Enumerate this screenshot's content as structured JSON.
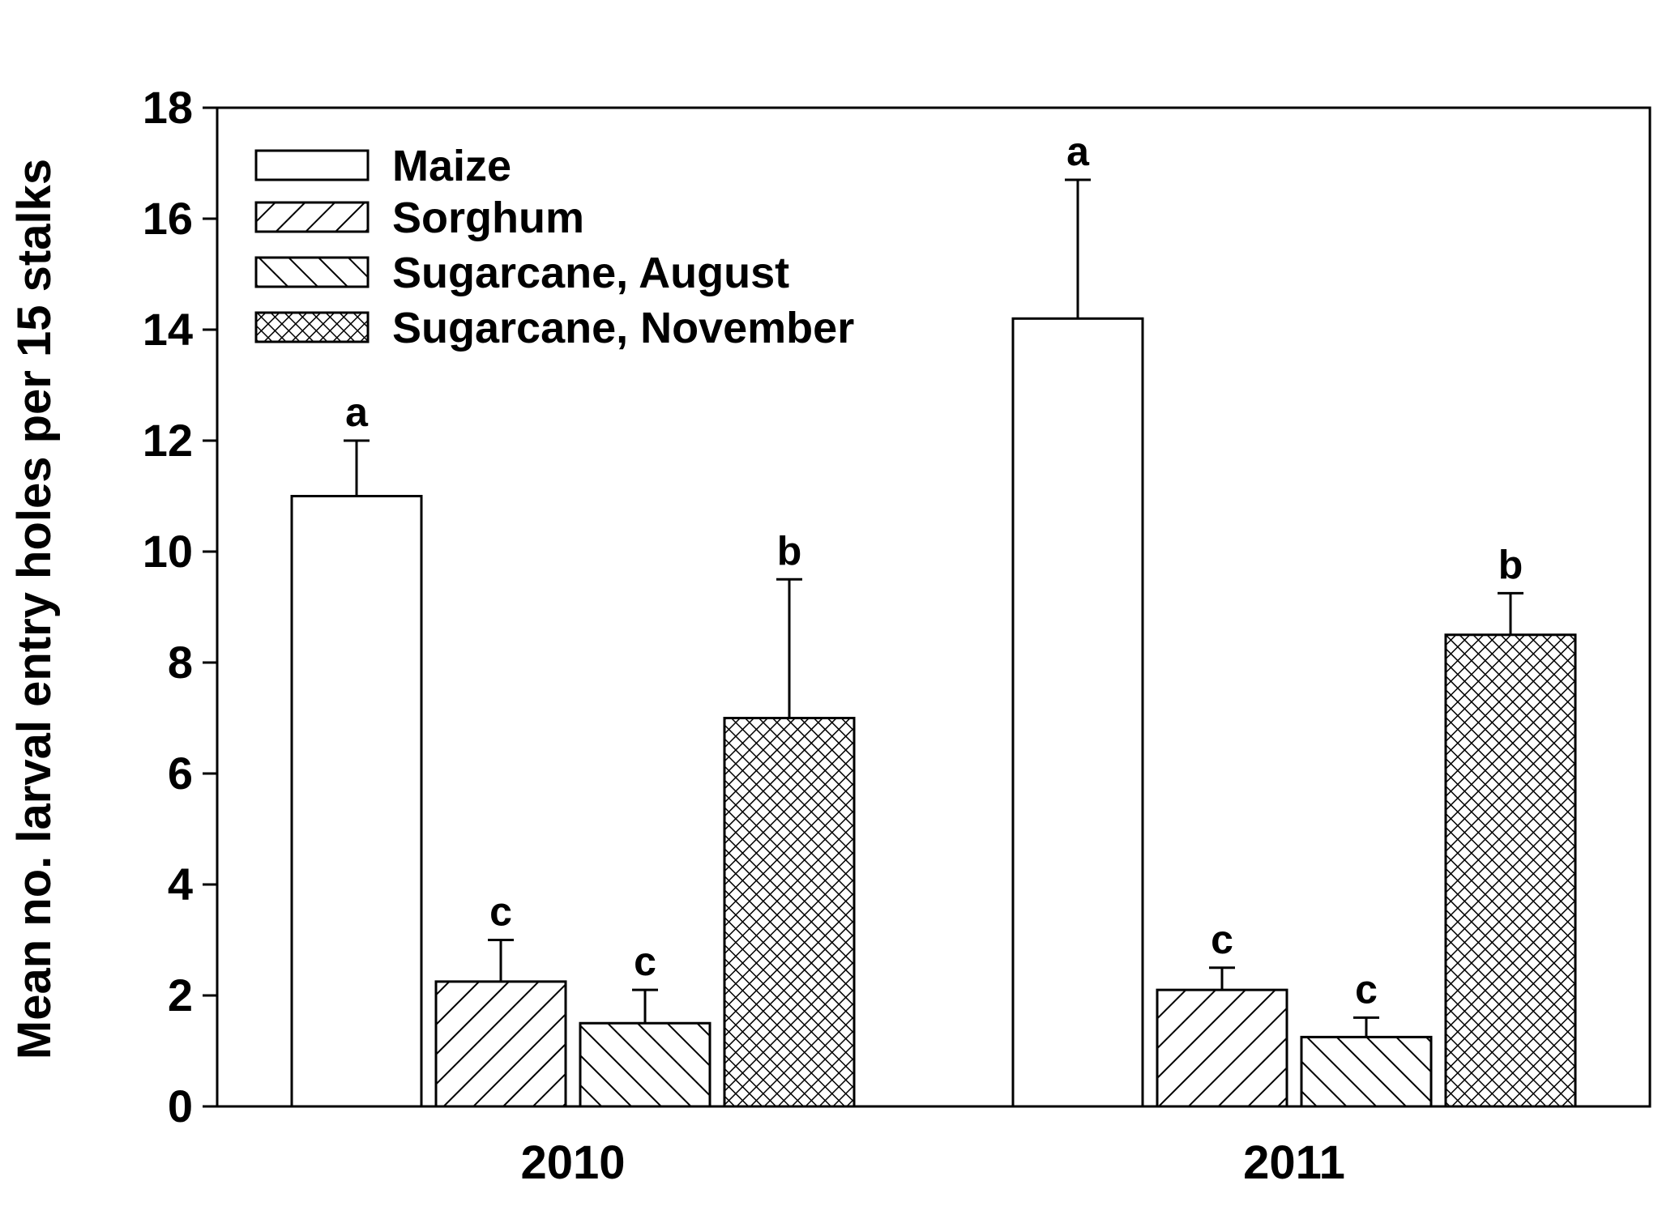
{
  "chart_data": {
    "type": "bar",
    "categories": [
      "2010",
      "2011"
    ],
    "ylabel": "Mean no. larval entry holes per 15 stalks",
    "xlabel": "",
    "ylim": [
      0,
      18
    ],
    "yticks": [
      0,
      2,
      4,
      6,
      8,
      10,
      12,
      14,
      16,
      18
    ],
    "series": [
      {
        "name": "Maize",
        "pattern": "none",
        "values": [
          11.0,
          14.2
        ],
        "errors": [
          1.0,
          2.5
        ],
        "letters": [
          "a",
          "a"
        ]
      },
      {
        "name": "Sorghum",
        "pattern": "hatch-forward",
        "values": [
          2.25,
          2.1
        ],
        "errors": [
          0.75,
          0.4
        ],
        "letters": [
          "c",
          "c"
        ]
      },
      {
        "name": "Sugarcane, August",
        "pattern": "hatch-back",
        "values": [
          1.5,
          1.25
        ],
        "errors": [
          0.6,
          0.35
        ],
        "letters": [
          "c",
          "c"
        ]
      },
      {
        "name": "Sugarcane, November",
        "pattern": "crosshatch",
        "values": [
          7.0,
          8.5
        ],
        "errors": [
          2.5,
          0.75
        ],
        "letters": [
          "b",
          "b"
        ]
      }
    ],
    "legend_position": "top-left",
    "grid": false
  }
}
